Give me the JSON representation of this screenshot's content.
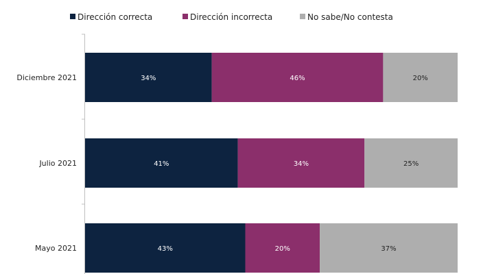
{
  "chart_data": {
    "type": "bar",
    "orientation": "horizontal",
    "stacked": true,
    "title": "",
    "xlabel": "",
    "ylabel": "",
    "xlim": [
      0,
      100
    ],
    "grid": false,
    "legend_position": "top",
    "categories": [
      "Diciembre 2021",
      "Julio 2021",
      "Mayo 2021"
    ],
    "series": [
      {
        "name": "Dirección correcta",
        "color": "#0d2340",
        "label_color": "#ffffff",
        "values": [
          34,
          41,
          43
        ],
        "labels": [
          "34%",
          "41%",
          "43%"
        ]
      },
      {
        "name": "Dirección incorrecta",
        "color": "#8b2f6b",
        "label_color": "#ffffff",
        "values": [
          46,
          34,
          20
        ],
        "labels": [
          "46%",
          "34%",
          "20%"
        ]
      },
      {
        "name": "No sabe/No contesta",
        "color": "#aeaeae",
        "label_color": "#222222",
        "values": [
          20,
          25,
          37
        ],
        "labels": [
          "20%",
          "25%",
          "37%"
        ]
      }
    ]
  }
}
